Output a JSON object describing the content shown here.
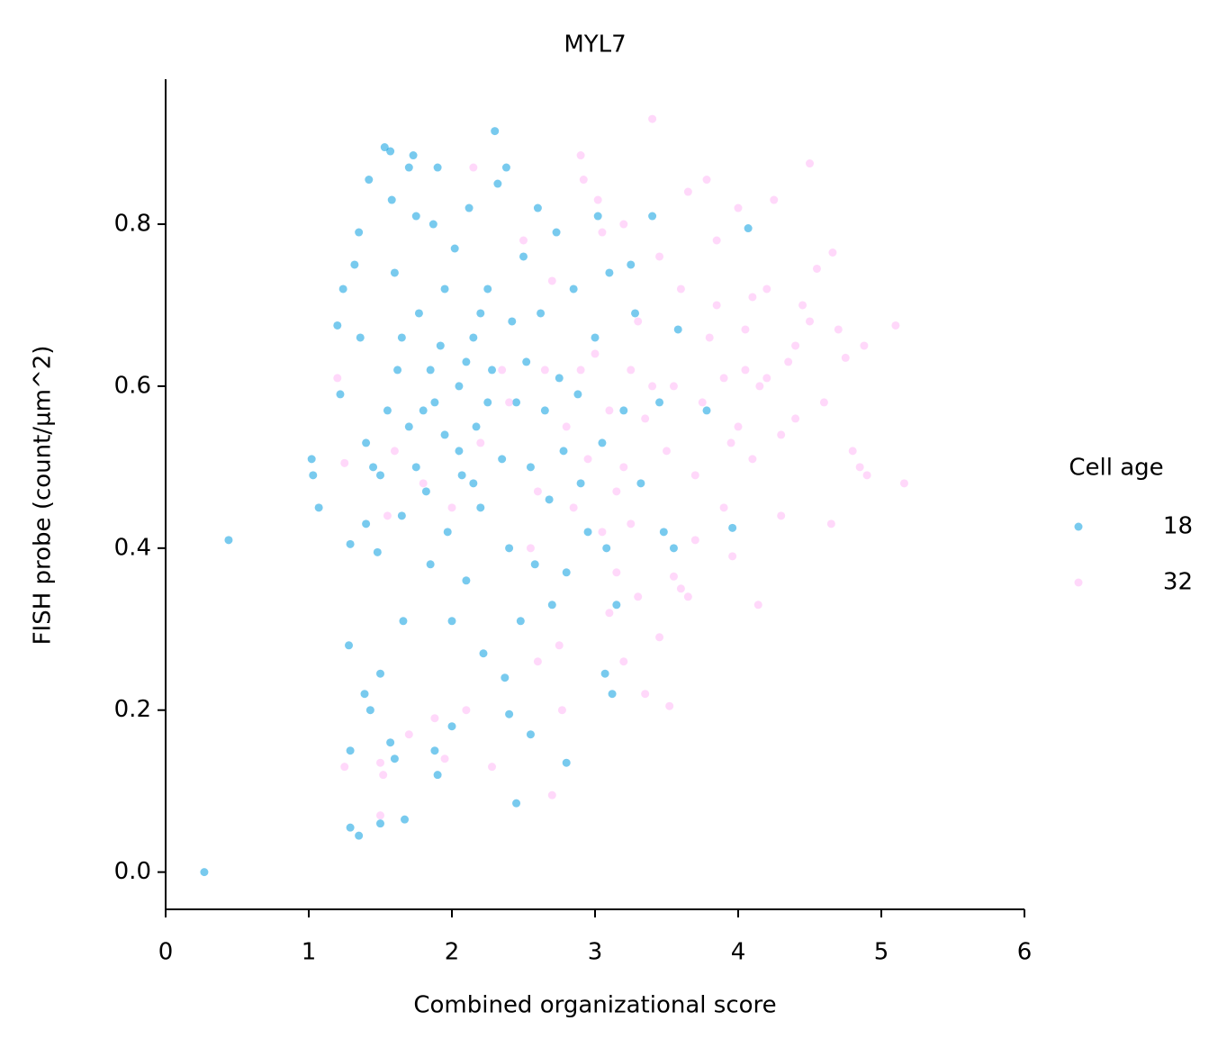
{
  "chart_data": {
    "type": "scatter",
    "title": "MYL7",
    "x_label": "Combined organizational score",
    "y_label": "FISH probe (count/µm^2)",
    "legend_title": "Cell age",
    "legend_position": "right",
    "xlim": [
      0,
      6
    ],
    "xticks": [
      0,
      1,
      2,
      3,
      4,
      5,
      6
    ],
    "ylim": [
      -0.046,
      0.979
    ],
    "yticks": [
      {
        "value": 0,
        "label": "0.0"
      },
      0.2,
      0.4,
      0.6,
      0.8
    ],
    "series": [
      {
        "name": "18",
        "color": "#0a9ee0",
        "x": [
          0.27,
          0.44,
          1.02,
          1.03,
          1.07,
          1.29,
          1.35,
          1.5,
          1.67,
          1.29,
          1.28,
          1.29,
          1.39,
          1.43,
          1.5,
          1.57,
          1.6,
          1.88,
          1.9,
          2.0,
          2.45,
          2.8,
          2.55,
          2.4,
          2.37,
          1.2,
          1.22,
          1.24,
          1.32,
          1.35,
          1.36,
          1.4,
          1.4,
          1.42,
          1.45,
          1.48,
          1.53,
          1.57,
          1.58,
          1.6,
          1.62,
          1.65,
          1.66,
          1.7,
          1.73,
          1.75,
          1.77,
          1.8,
          1.82,
          1.85,
          1.87,
          1.9,
          1.92,
          1.95,
          1.97,
          2.0,
          2.02,
          2.05,
          2.07,
          2.1,
          2.12,
          2.15,
          2.17,
          2.2,
          2.22,
          2.25,
          2.28,
          2.3,
          2.32,
          2.35,
          2.38,
          2.4,
          2.42,
          2.45,
          2.48,
          2.5,
          2.52,
          2.55,
          2.58,
          2.6,
          2.62,
          2.65,
          2.68,
          2.7,
          2.73,
          2.75,
          2.78,
          2.8,
          2.85,
          2.88,
          2.9,
          2.95,
          3.0,
          3.02,
          3.05,
          3.08,
          3.1,
          3.12,
          3.07,
          3.15,
          3.2,
          3.25,
          3.28,
          3.32,
          3.4,
          3.45,
          3.48,
          3.55,
          3.58,
          3.78,
          3.96,
          4.07,
          1.7,
          1.85,
          1.95,
          2.05,
          2.15,
          2.25,
          1.75,
          1.88,
          2.1,
          2.2,
          1.65,
          1.55,
          1.5
        ],
        "values": [
          0.0,
          0.41,
          0.51,
          0.49,
          0.45,
          0.055,
          0.045,
          0.06,
          0.065,
          0.15,
          0.28,
          0.405,
          0.22,
          0.2,
          0.245,
          0.16,
          0.14,
          0.15,
          0.12,
          0.18,
          0.085,
          0.135,
          0.17,
          0.195,
          0.24,
          0.675,
          0.59,
          0.72,
          0.75,
          0.79,
          0.66,
          0.53,
          0.43,
          0.855,
          0.5,
          0.395,
          0.895,
          0.89,
          0.83,
          0.74,
          0.62,
          0.44,
          0.31,
          0.87,
          0.885,
          0.81,
          0.69,
          0.57,
          0.47,
          0.38,
          0.8,
          0.87,
          0.65,
          0.54,
          0.42,
          0.31,
          0.77,
          0.6,
          0.49,
          0.36,
          0.82,
          0.66,
          0.55,
          0.45,
          0.27,
          0.72,
          0.62,
          0.915,
          0.85,
          0.51,
          0.87,
          0.4,
          0.68,
          0.58,
          0.31,
          0.76,
          0.63,
          0.5,
          0.38,
          0.82,
          0.69,
          0.57,
          0.46,
          0.33,
          0.79,
          0.61,
          0.52,
          0.37,
          0.72,
          0.59,
          0.48,
          0.42,
          0.66,
          0.81,
          0.53,
          0.4,
          0.74,
          0.22,
          0.245,
          0.33,
          0.57,
          0.75,
          0.69,
          0.48,
          0.81,
          0.58,
          0.42,
          0.4,
          0.67,
          0.57,
          0.425,
          0.795,
          0.55,
          0.62,
          0.72,
          0.52,
          0.48,
          0.58,
          0.5,
          0.58,
          0.63,
          0.69,
          0.66,
          0.57,
          0.49
        ]
      },
      {
        "name": "32",
        "color": "#ffb8f5",
        "x": [
          1.2,
          1.25,
          1.25,
          1.5,
          1.52,
          1.5,
          1.55,
          1.7,
          1.88,
          1.95,
          2.1,
          2.15,
          2.28,
          2.7,
          2.77,
          2.6,
          2.75,
          2.9,
          2.92,
          3.05,
          3.02,
          3.1,
          3.15,
          3.2,
          3.25,
          3.3,
          3.35,
          3.4,
          3.45,
          3.52,
          3.55,
          3.6,
          3.65,
          3.7,
          3.78,
          3.85,
          3.9,
          3.96,
          4.0,
          4.05,
          4.1,
          4.14,
          4.2,
          4.25,
          4.3,
          4.35,
          4.4,
          4.45,
          4.5,
          4.55,
          4.6,
          4.65,
          4.66,
          4.7,
          4.75,
          4.8,
          4.85,
          4.88,
          4.9,
          5.1,
          5.16,
          4.5,
          4.2,
          4.0,
          3.8,
          3.6,
          3.4,
          3.2,
          3.0,
          2.8,
          2.6,
          2.4,
          2.2,
          2.0,
          1.8,
          1.6,
          2.5,
          2.7,
          2.9,
          3.1,
          3.3,
          3.5,
          3.7,
          3.9,
          4.1,
          4.3,
          3.2,
          3.45,
          3.65,
          3.85,
          4.05,
          2.85,
          3.05,
          3.25,
          3.55,
          3.75,
          3.95,
          4.15,
          4.4,
          3.35,
          3.15,
          2.95,
          2.65,
          2.35,
          2.55
        ],
        "values": [
          0.61,
          0.505,
          0.13,
          0.07,
          0.12,
          0.135,
          0.44,
          0.17,
          0.19,
          0.14,
          0.2,
          0.87,
          0.13,
          0.095,
          0.2,
          0.26,
          0.28,
          0.885,
          0.855,
          0.79,
          0.83,
          0.32,
          0.37,
          0.26,
          0.43,
          0.34,
          0.22,
          0.93,
          0.29,
          0.205,
          0.365,
          0.35,
          0.34,
          0.41,
          0.855,
          0.78,
          0.45,
          0.39,
          0.82,
          0.62,
          0.51,
          0.33,
          0.72,
          0.83,
          0.44,
          0.63,
          0.56,
          0.7,
          0.875,
          0.745,
          0.58,
          0.43,
          0.765,
          0.67,
          0.635,
          0.52,
          0.5,
          0.65,
          0.49,
          0.675,
          0.48,
          0.68,
          0.61,
          0.55,
          0.66,
          0.72,
          0.6,
          0.5,
          0.64,
          0.55,
          0.47,
          0.58,
          0.53,
          0.45,
          0.48,
          0.52,
          0.78,
          0.73,
          0.62,
          0.57,
          0.68,
          0.52,
          0.49,
          0.61,
          0.71,
          0.54,
          0.8,
          0.76,
          0.84,
          0.7,
          0.67,
          0.45,
          0.42,
          0.62,
          0.6,
          0.58,
          0.53,
          0.6,
          0.65,
          0.56,
          0.47,
          0.51,
          0.62,
          0.62,
          0.4
        ]
      }
    ]
  }
}
